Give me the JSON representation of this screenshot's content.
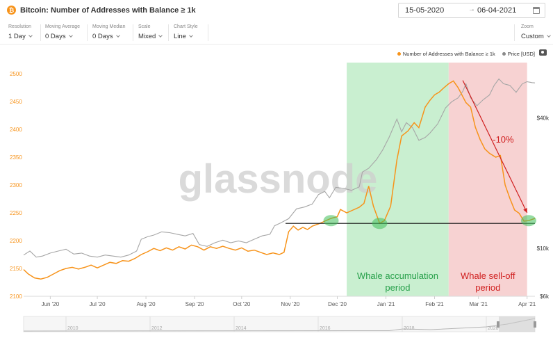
{
  "header": {
    "coin_icon_glyph": "₿",
    "title": "Bitcoin: Number of Addresses with Balance ≥ 1k",
    "date_start": "15-05-2020",
    "date_arrow": "→",
    "date_end": "06-04-2021"
  },
  "controls": [
    {
      "label": "Resolution",
      "value": "1 Day"
    },
    {
      "label": "Moving Average",
      "value": "0 Days"
    },
    {
      "label": "Moving Median",
      "value": "0 Days"
    },
    {
      "label": "Scale",
      "value": "Mixed"
    },
    {
      "label": "Chart Style",
      "value": "Line"
    }
  ],
  "zoom": {
    "label": "Zoom",
    "value": "Custom"
  },
  "colors": {
    "addresses": "#f7931a",
    "price": "#a6a6a6",
    "accumulation": "#c9efd0",
    "selloff": "#f7d2d2",
    "annotation_red": "#d01f1f"
  },
  "watermark": "glassnode",
  "chart_data": {
    "type": "line",
    "legend_position": "top-right",
    "grid": false,
    "series": [
      {
        "name": "Number of Addresses with Balance ≥ 1k",
        "axis": "left",
        "points": [
          [
            "2020-05-15",
            2148
          ],
          [
            "2020-05-18",
            2140
          ],
          [
            "2020-05-22",
            2133
          ],
          [
            "2020-05-26",
            2131
          ],
          [
            "2020-05-30",
            2134
          ],
          [
            "2020-06-03",
            2140
          ],
          [
            "2020-06-07",
            2146
          ],
          [
            "2020-06-11",
            2150
          ],
          [
            "2020-06-15",
            2152
          ],
          [
            "2020-06-19",
            2149
          ],
          [
            "2020-06-23",
            2152
          ],
          [
            "2020-06-27",
            2156
          ],
          [
            "2020-07-01",
            2151
          ],
          [
            "2020-07-05",
            2156
          ],
          [
            "2020-07-09",
            2161
          ],
          [
            "2020-07-13",
            2159
          ],
          [
            "2020-07-17",
            2164
          ],
          [
            "2020-07-21",
            2163
          ],
          [
            "2020-07-25",
            2168
          ],
          [
            "2020-07-29",
            2175
          ],
          [
            "2020-08-02",
            2180
          ],
          [
            "2020-08-06",
            2186
          ],
          [
            "2020-08-10",
            2182
          ],
          [
            "2020-08-14",
            2187
          ],
          [
            "2020-08-18",
            2183
          ],
          [
            "2020-08-22",
            2189
          ],
          [
            "2020-08-26",
            2185
          ],
          [
            "2020-08-30",
            2192
          ],
          [
            "2020-09-03",
            2189
          ],
          [
            "2020-09-07",
            2183
          ],
          [
            "2020-09-11",
            2189
          ],
          [
            "2020-09-15",
            2186
          ],
          [
            "2020-09-19",
            2190
          ],
          [
            "2020-09-23",
            2186
          ],
          [
            "2020-09-27",
            2183
          ],
          [
            "2020-10-01",
            2187
          ],
          [
            "2020-10-05",
            2181
          ],
          [
            "2020-10-09",
            2183
          ],
          [
            "2020-10-13",
            2179
          ],
          [
            "2020-10-17",
            2175
          ],
          [
            "2020-10-21",
            2178
          ],
          [
            "2020-10-25",
            2175
          ],
          [
            "2020-10-28",
            2179
          ],
          [
            "2020-10-31",
            2216
          ],
          [
            "2020-11-03",
            2226
          ],
          [
            "2020-11-06",
            2219
          ],
          [
            "2020-11-09",
            2224
          ],
          [
            "2020-11-12",
            2220
          ],
          [
            "2020-11-15",
            2226
          ],
          [
            "2020-11-19",
            2230
          ],
          [
            "2020-11-23",
            2235
          ],
          [
            "2020-11-27",
            2240
          ],
          [
            "2020-12-01",
            2243
          ],
          [
            "2020-12-03",
            2256
          ],
          [
            "2020-12-07",
            2250
          ],
          [
            "2020-12-11",
            2255
          ],
          [
            "2020-12-15",
            2260
          ],
          [
            "2020-12-18",
            2267
          ],
          [
            "2020-12-21",
            2298
          ],
          [
            "2020-12-24",
            2262
          ],
          [
            "2020-12-28",
            2231
          ],
          [
            "2020-12-31",
            2236
          ],
          [
            "2021-01-04",
            2262
          ],
          [
            "2021-01-08",
            2345
          ],
          [
            "2021-01-11",
            2388
          ],
          [
            "2021-01-15",
            2397
          ],
          [
            "2021-01-19",
            2412
          ],
          [
            "2021-01-22",
            2403
          ],
          [
            "2021-01-26",
            2440
          ],
          [
            "2021-01-29",
            2452
          ],
          [
            "2021-02-01",
            2462
          ],
          [
            "2021-02-04",
            2467
          ],
          [
            "2021-02-07",
            2475
          ],
          [
            "2021-02-10",
            2482
          ],
          [
            "2021-02-13",
            2487
          ],
          [
            "2021-02-16",
            2475
          ],
          [
            "2021-02-19",
            2459
          ],
          [
            "2021-02-21",
            2448
          ],
          [
            "2021-02-24",
            2440
          ],
          [
            "2021-02-27",
            2404
          ],
          [
            "2021-03-02",
            2382
          ],
          [
            "2021-03-05",
            2365
          ],
          [
            "2021-03-08",
            2357
          ],
          [
            "2021-03-12",
            2350
          ],
          [
            "2021-03-15",
            2353
          ],
          [
            "2021-03-18",
            2300
          ],
          [
            "2021-03-21",
            2276
          ],
          [
            "2021-03-24",
            2255
          ],
          [
            "2021-03-27",
            2249
          ],
          [
            "2021-03-30",
            2235
          ],
          [
            "2021-04-02",
            2236
          ],
          [
            "2021-04-06",
            2240
          ]
        ]
      },
      {
        "name": "Price [USD]",
        "axis": "right",
        "points": [
          [
            "2020-05-15",
            9300
          ],
          [
            "2020-05-19",
            9700
          ],
          [
            "2020-05-23",
            9100
          ],
          [
            "2020-05-27",
            9200
          ],
          [
            "2020-06-01",
            9500
          ],
          [
            "2020-06-06",
            9700
          ],
          [
            "2020-06-11",
            9900
          ],
          [
            "2020-06-16",
            9400
          ],
          [
            "2020-06-21",
            9500
          ],
          [
            "2020-06-26",
            9200
          ],
          [
            "2020-07-01",
            9100
          ],
          [
            "2020-07-06",
            9300
          ],
          [
            "2020-07-11",
            9200
          ],
          [
            "2020-07-16",
            9100
          ],
          [
            "2020-07-21",
            9300
          ],
          [
            "2020-07-26",
            9700
          ],
          [
            "2020-07-29",
            11000
          ],
          [
            "2020-08-02",
            11300
          ],
          [
            "2020-08-06",
            11500
          ],
          [
            "2020-08-11",
            11900
          ],
          [
            "2020-08-16",
            11800
          ],
          [
            "2020-08-21",
            11600
          ],
          [
            "2020-08-26",
            11400
          ],
          [
            "2020-08-31",
            11700
          ],
          [
            "2020-09-04",
            10400
          ],
          [
            "2020-09-09",
            10200
          ],
          [
            "2020-09-14",
            10600
          ],
          [
            "2020-09-19",
            10900
          ],
          [
            "2020-09-24",
            10600
          ],
          [
            "2020-09-29",
            10800
          ],
          [
            "2020-10-04",
            10600
          ],
          [
            "2020-10-09",
            11000
          ],
          [
            "2020-10-14",
            11400
          ],
          [
            "2020-10-19",
            11600
          ],
          [
            "2020-10-22",
            12700
          ],
          [
            "2020-10-26",
            13100
          ],
          [
            "2020-10-31",
            13700
          ],
          [
            "2020-11-05",
            15200
          ],
          [
            "2020-11-10",
            15500
          ],
          [
            "2020-11-15",
            16000
          ],
          [
            "2020-11-19",
            17700
          ],
          [
            "2020-11-23",
            18300
          ],
          [
            "2020-11-26",
            17100
          ],
          [
            "2020-11-30",
            19100
          ],
          [
            "2020-12-05",
            18900
          ],
          [
            "2020-12-10",
            18500
          ],
          [
            "2020-12-15",
            19200
          ],
          [
            "2020-12-17",
            22500
          ],
          [
            "2020-12-21",
            23400
          ],
          [
            "2020-12-26",
            25700
          ],
          [
            "2020-12-30",
            28500
          ],
          [
            "2021-01-03",
            32500
          ],
          [
            "2021-01-08",
            39500
          ],
          [
            "2021-01-11",
            34500
          ],
          [
            "2021-01-14",
            38000
          ],
          [
            "2021-01-18",
            36000
          ],
          [
            "2021-01-22",
            31500
          ],
          [
            "2021-01-26",
            32500
          ],
          [
            "2021-01-29",
            34000
          ],
          [
            "2021-02-03",
            37500
          ],
          [
            "2021-02-08",
            44500
          ],
          [
            "2021-02-12",
            47500
          ],
          [
            "2021-02-16",
            49500
          ],
          [
            "2021-02-19",
            53000
          ],
          [
            "2021-02-21",
            57500
          ],
          [
            "2021-02-24",
            49500
          ],
          [
            "2021-02-28",
            45500
          ],
          [
            "2021-03-04",
            48500
          ],
          [
            "2021-03-08",
            51000
          ],
          [
            "2021-03-11",
            56500
          ],
          [
            "2021-03-14",
            60500
          ],
          [
            "2021-03-17",
            57500
          ],
          [
            "2021-03-21",
            56500
          ],
          [
            "2021-03-25",
            52500
          ],
          [
            "2021-03-29",
            57500
          ],
          [
            "2021-04-01",
            58800
          ],
          [
            "2021-04-04",
            58200
          ],
          [
            "2021-04-06",
            58000
          ]
        ]
      }
    ],
    "x_tick_labels": [
      "Jun '20",
      "Jul '20",
      "Aug '20",
      "Sep '20",
      "Oct '20",
      "Nov '20",
      "Dec '20",
      "Jan '21",
      "Feb '21",
      "Mar '21",
      "Apr '21"
    ],
    "x_tick_dates": [
      "2020-06-01",
      "2020-07-01",
      "2020-08-01",
      "2020-09-01",
      "2020-10-01",
      "2020-11-01",
      "2020-12-01",
      "2021-01-01",
      "2021-02-01",
      "2021-03-01",
      "2021-04-01"
    ],
    "xlim": [
      "2020-05-15",
      "2021-04-06"
    ],
    "y_left": {
      "range": [
        2100,
        2520
      ],
      "ticks": [
        2100,
        2150,
        2200,
        2250,
        2300,
        2350,
        2400,
        2450,
        2500
      ],
      "labels": [
        "2100",
        "2150",
        "2200",
        "2250",
        "2300",
        "2350",
        "2400",
        "2450",
        "2500"
      ]
    },
    "y_right": {
      "scale": "log",
      "range": [
        6000,
        72000
      ],
      "ticks": [
        6000,
        10000,
        40000
      ],
      "labels": [
        "$6k",
        "$10k",
        "$40k"
      ]
    },
    "annotations": {
      "accumulation": {
        "x_start": "2020-12-07",
        "x_end": "2021-02-10",
        "label_lines": [
          "Whale accumulation",
          "period"
        ]
      },
      "selloff": {
        "x_start": "2021-02-10",
        "x_end": "2021-04-01",
        "label_lines": [
          "Whale sell-off",
          "period"
        ]
      },
      "support_line": {
        "y": 2231,
        "x_start": "2020-10-29",
        "x_end": "2021-04-06"
      },
      "trend_arrow": {
        "from": [
          "2021-02-19",
          2488
        ],
        "to": [
          "2021-04-01",
          2250
        ],
        "label": "-10%"
      },
      "highlights": [
        {
          "x": "2020-11-27",
          "y": 2236
        },
        {
          "x": "2020-12-28",
          "y": 2231
        },
        {
          "x": "2021-04-02",
          "y": 2236
        }
      ]
    }
  },
  "navigator": {
    "year_labels": [
      "2010",
      "2012",
      "2014",
      "2016",
      "2018",
      "2020"
    ]
  }
}
